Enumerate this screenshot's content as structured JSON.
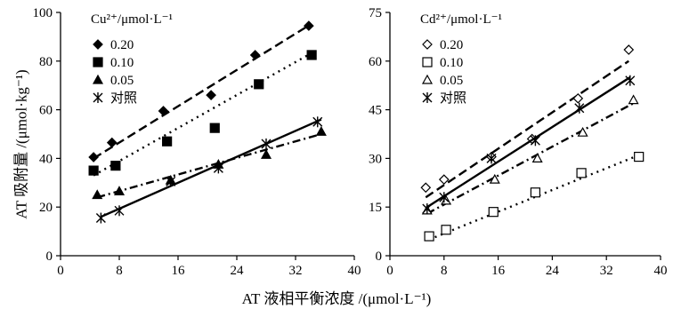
{
  "figure": {
    "xlabel": "AT 液相平衡浓度 /(μmol·L⁻¹)",
    "ylabel": "AT 吸附量 /(μmol·kg⁻¹)"
  },
  "chart_data": [
    {
      "type": "scatter",
      "legend_title": "Cu²⁺/μmol·L⁻¹",
      "legend_position": "top-left",
      "xlim": [
        0,
        40
      ],
      "ylim": [
        0,
        100
      ],
      "xticks": [
        "0",
        "8",
        "16",
        "24",
        "32",
        "40"
      ],
      "yticks": [
        "0",
        "20",
        "40",
        "60",
        "80",
        "100"
      ],
      "series": [
        {
          "name": "0.20",
          "marker": "filled-diamond",
          "line": "dash",
          "x": [
            4.5,
            7,
            14,
            20.5,
            26.5,
            33.8
          ],
          "y": [
            40.5,
            46.5,
            59.5,
            66,
            82.5,
            94.5
          ],
          "fit": [
            [
              4.5,
              40
            ],
            [
              34,
              95
            ]
          ]
        },
        {
          "name": "0.10",
          "marker": "filled-square",
          "line": "dot",
          "x": [
            4.5,
            7.5,
            14.5,
            21,
            27,
            34.2
          ],
          "y": [
            35,
            37,
            47,
            52.5,
            70.5,
            82.5
          ],
          "fit": [
            [
              4.5,
              33
            ],
            [
              34,
              83
            ]
          ]
        },
        {
          "name": "0.05",
          "marker": "filled-triangle",
          "line": "dashdot",
          "x": [
            5,
            8,
            15,
            21.5,
            28,
            35.5
          ],
          "y": [
            25,
            26.5,
            31,
            37.5,
            41.5,
            51
          ],
          "fit": [
            [
              5,
              24
            ],
            [
              35.5,
              50
            ]
          ]
        },
        {
          "name": "对照",
          "marker": "asterisk",
          "line": "solid",
          "x": [
            5.5,
            8,
            15,
            21.5,
            28,
            35
          ],
          "y": [
            15.5,
            18.5,
            30.5,
            36,
            46,
            55
          ],
          "fit": [
            [
              5.5,
              16
            ],
            [
              35.5,
              56
            ]
          ]
        }
      ]
    },
    {
      "type": "scatter",
      "legend_title": "Cd²⁺/μmol·L⁻¹",
      "legend_position": "top-left",
      "xlim": [
        0,
        40
      ],
      "ylim": [
        0,
        75
      ],
      "xticks": [
        "0",
        "8",
        "16",
        "24",
        "32",
        "40"
      ],
      "yticks": [
        "0",
        "15",
        "30",
        "45",
        "60",
        "75"
      ],
      "series": [
        {
          "name": "0.20",
          "marker": "open-diamond",
          "line": "dash",
          "x": [
            5.3,
            8,
            15,
            21,
            27.8,
            35.3
          ],
          "y": [
            21,
            23.5,
            30.5,
            36,
            48.5,
            63.5
          ],
          "fit": [
            [
              5.3,
              18
            ],
            [
              35.3,
              60
            ]
          ]
        },
        {
          "name": "0.10",
          "marker": "open-square",
          "line": "dot",
          "x": [
            5.8,
            8.3,
            15.3,
            21.5,
            28.3,
            36.8
          ],
          "y": [
            6,
            8,
            13.5,
            19.5,
            25.5,
            30.5
          ],
          "fit": [
            [
              5.8,
              5
            ],
            [
              36.8,
              31
            ]
          ]
        },
        {
          "name": "0.05",
          "marker": "open-triangle",
          "line": "dashdot",
          "x": [
            5.5,
            8.3,
            15.5,
            21.8,
            28.5,
            36
          ],
          "y": [
            14,
            17,
            23.5,
            30,
            38,
            48
          ],
          "fit": [
            [
              5.5,
              13
            ],
            [
              36,
              47
            ]
          ]
        },
        {
          "name": "对照",
          "marker": "asterisk",
          "line": "solid",
          "x": [
            5.5,
            8,
            15,
            21.5,
            28,
            35.5
          ],
          "y": [
            14.5,
            18,
            30,
            35.5,
            45.5,
            54
          ],
          "fit": [
            [
              5.5,
              15
            ],
            [
              35.5,
              55
            ]
          ]
        }
      ]
    }
  ]
}
